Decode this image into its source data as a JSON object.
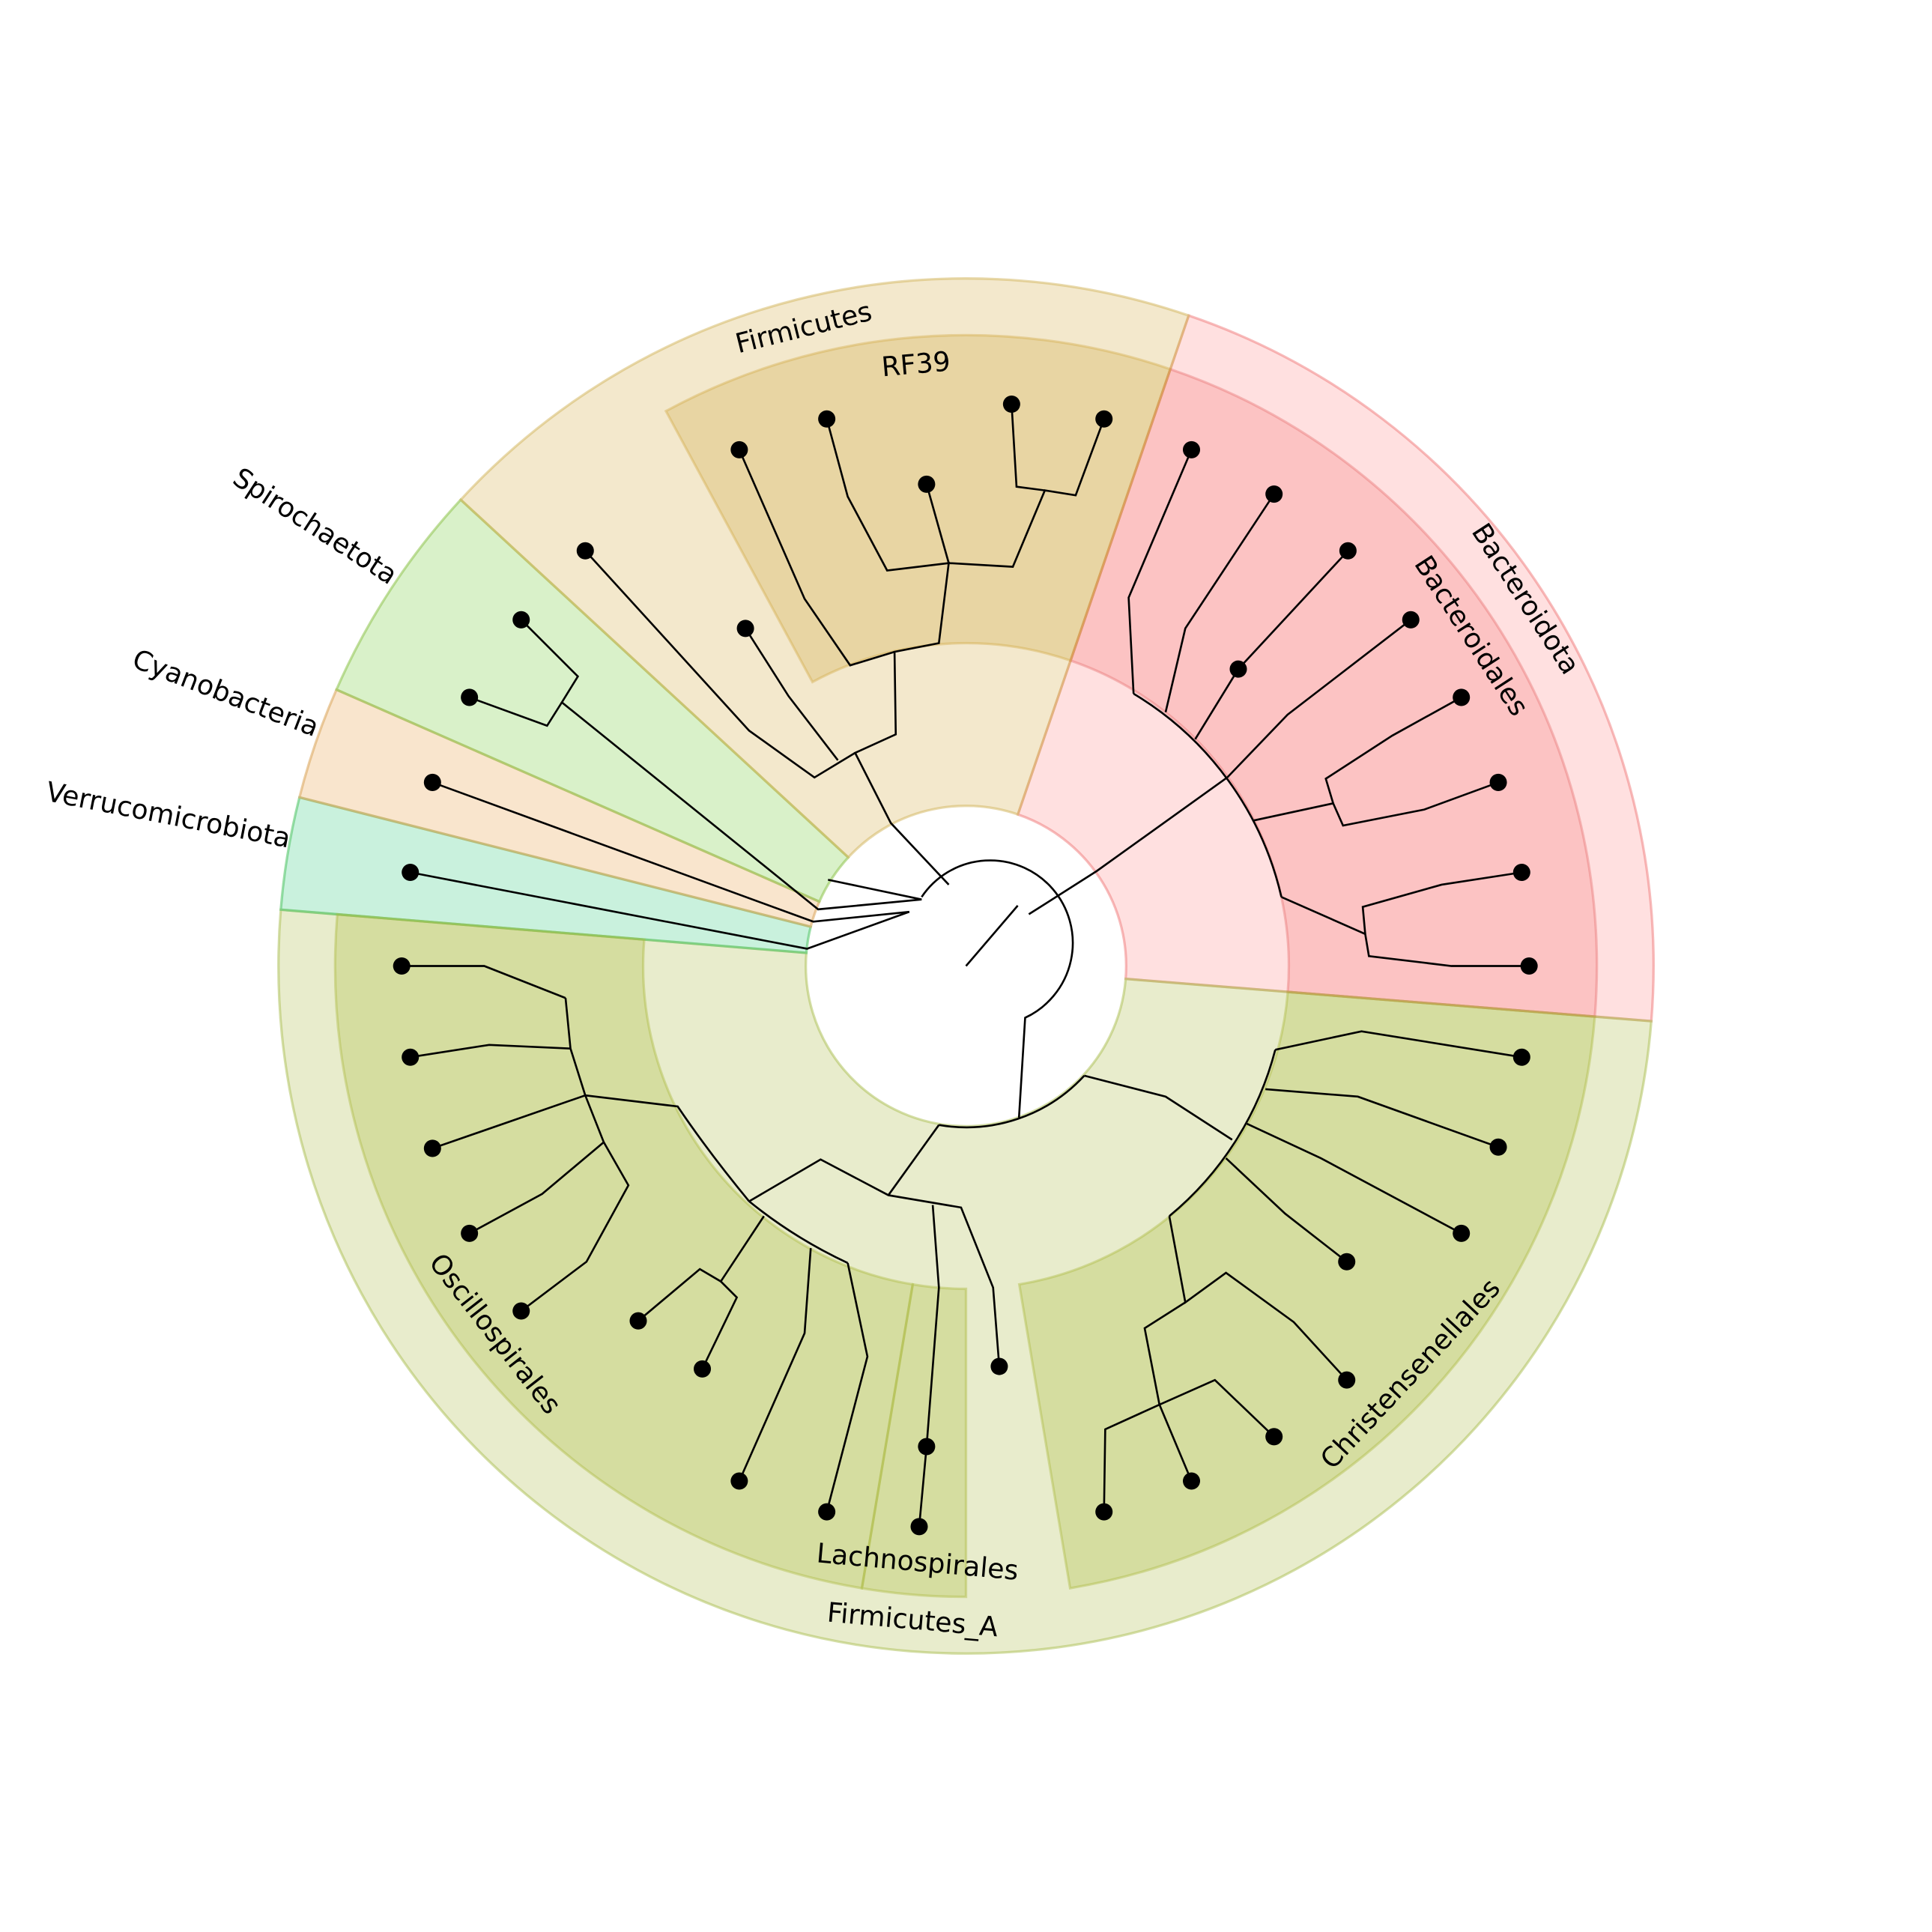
{
  "phyla": [
    {
      "label": "Bacteroidota"
    },
    {
      "label": "Firmicutes_A"
    },
    {
      "label": "Verrucomicrobiota"
    },
    {
      "label": "Cyanobacteria"
    },
    {
      "label": "Spirochaetota"
    },
    {
      "label": "Firmicutes"
    }
  ],
  "orders": [
    {
      "label": "Bacteroidales"
    },
    {
      "label": "Christensenellales"
    },
    {
      "label": "Lachnospirales"
    },
    {
      "label": "Oscillospirales"
    },
    {
      "label": "RF39"
    }
  ]
}
